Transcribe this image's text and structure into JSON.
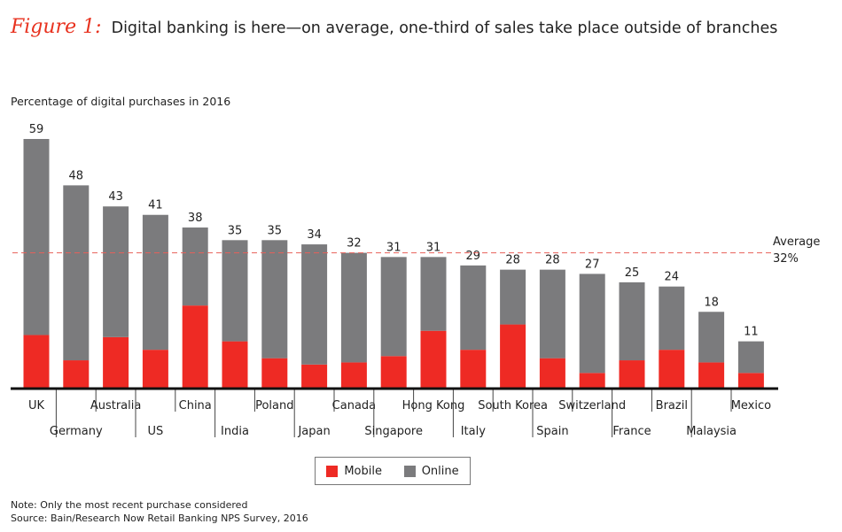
{
  "header": {
    "figure_label": "Figure 1:",
    "title": "Digital banking is here—on average, one-third of sales take place outside of branches"
  },
  "chart_data": {
    "type": "bar",
    "stacked": true,
    "ylabel": "Percentage of digital purchases in 2016",
    "categories": [
      "UK",
      "Germany",
      "Australia",
      "US",
      "China",
      "India",
      "Poland",
      "Japan",
      "Canada",
      "Singapore",
      "Hong Kong",
      "Italy",
      "South Korea",
      "Spain",
      "Switzerland",
      "France",
      "Brazil",
      "Malaysia",
      "Mexico"
    ],
    "totals": [
      59,
      48,
      43,
      41,
      38,
      35,
      35,
      34,
      32,
      31,
      31,
      29,
      28,
      28,
      27,
      25,
      24,
      18,
      11
    ],
    "series": [
      {
        "name": "Mobile",
        "color": "#ee2a24",
        "values": [
          12.5,
          6.5,
          12,
          9,
          19.5,
          11,
          7,
          5.5,
          6,
          7.5,
          13.5,
          9,
          15,
          7,
          3.5,
          6.5,
          9,
          6,
          3.5
        ]
      },
      {
        "name": "Online",
        "color": "#7b7b7d",
        "values": [
          46.5,
          41.5,
          31,
          32,
          18.5,
          24,
          28,
          28.5,
          26,
          23.5,
          17.5,
          20,
          13,
          21,
          23.5,
          18.5,
          15,
          12,
          7.5
        ]
      }
    ],
    "ylim": [
      0,
      62
    ],
    "reference_line": {
      "value": 32,
      "label_line1": "Average",
      "label_line2": "32%",
      "color": "#e8605a"
    },
    "legend_position": "bottom-center"
  },
  "footer": {
    "note": "Note: Only the most recent purchase considered",
    "source": "Source: Bain/Research Now Retail Banking NPS Survey, 2016"
  }
}
